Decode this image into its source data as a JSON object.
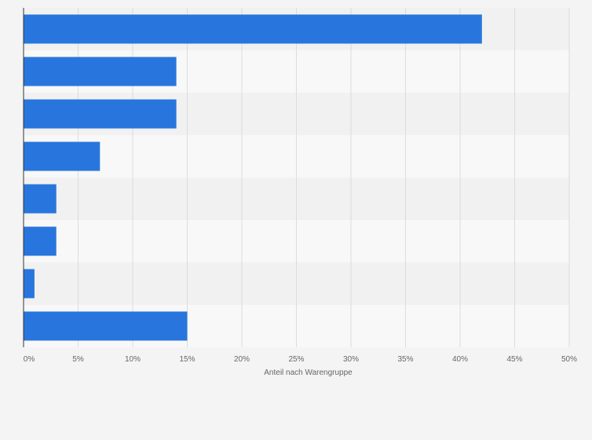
{
  "chart_data": {
    "type": "bar",
    "orientation": "horizontal",
    "categories": [
      "",
      "",
      "",
      "",
      "",
      "",
      "",
      ""
    ],
    "values": [
      42,
      14,
      14,
      7,
      3,
      3,
      1,
      15
    ],
    "xlabel": "Anteil nach Warengruppe",
    "xlim": [
      0,
      50
    ],
    "tick_values": [
      0,
      5,
      10,
      15,
      20,
      25,
      30,
      35,
      40,
      45,
      50
    ],
    "tick_labels": [
      "0%",
      "5%",
      "10%",
      "15%",
      "20%",
      "25%",
      "30%",
      "35%",
      "40%",
      "45%",
      "50%"
    ],
    "grid": true,
    "colors": {
      "bar": "#2876dd",
      "band_dark": "#f1f1f1",
      "band_light": "#f8f8f8",
      "background": "#f4f4f4",
      "gridline": "#dcdcdc",
      "axis": "#333333",
      "text": "#666666"
    }
  }
}
